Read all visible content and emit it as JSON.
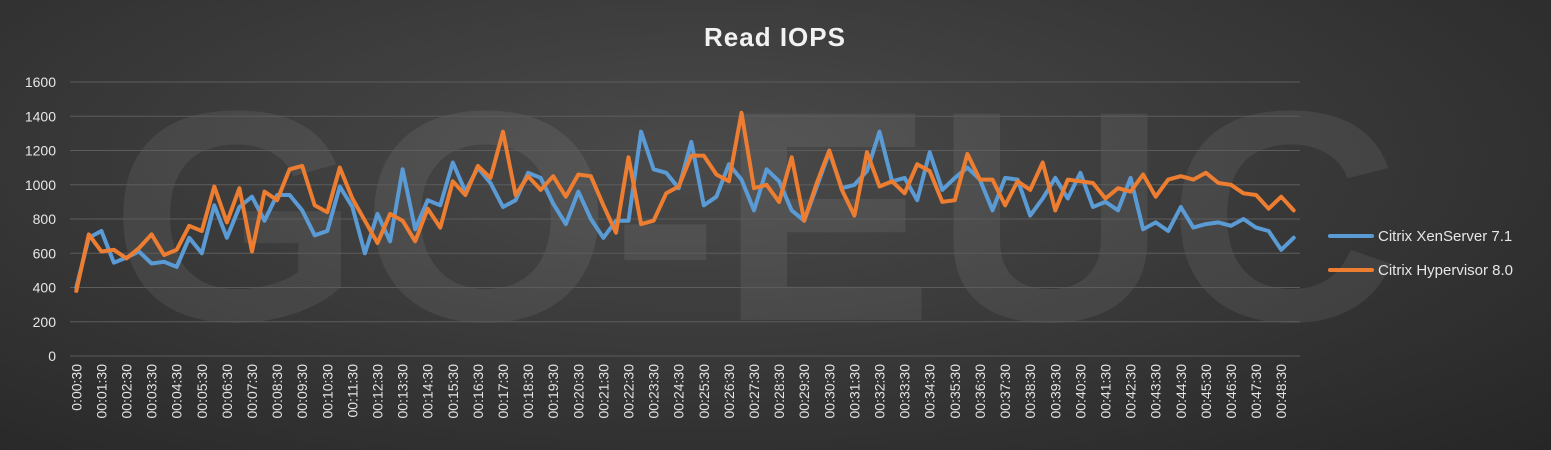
{
  "chart_data": {
    "type": "line",
    "title": "Read IOPS",
    "xlabel": "",
    "ylabel": "",
    "ylim": [
      0,
      1600
    ],
    "yticks": [
      0,
      200,
      400,
      600,
      800,
      1000,
      1200,
      1400,
      1600
    ],
    "grid": true,
    "legend_position": "right",
    "watermark": "GO-EUC",
    "x_tick_labels": [
      "0:00:30",
      "00:01:30",
      "00:02:30",
      "00:03:30",
      "00:04:30",
      "00:05:30",
      "00:06:30",
      "00:07:30",
      "00:08:30",
      "00:09:30",
      "00:10:30",
      "00:11:30",
      "00:12:30",
      "00:13:30",
      "00:14:30",
      "00:15:30",
      "00:16:30",
      "00:17:30",
      "00:18:30",
      "00:19:30",
      "00:20:30",
      "00:21:30",
      "00:22:30",
      "00:23:30",
      "00:24:30",
      "00:25:30",
      "00:26:30",
      "00:27:30",
      "00:28:30",
      "00:29:30",
      "00:30:30",
      "00:31:30",
      "00:32:30",
      "00:33:30",
      "00:34:30",
      "00:35:30",
      "00:36:30",
      "00:37:30",
      "00:38:30",
      "00:39:30",
      "00:40:30",
      "00:41:30",
      "00:42:30",
      "00:43:30",
      "00:44:30",
      "00:45:30",
      "00:46:30",
      "00:47:30",
      "00:48:30"
    ],
    "series": [
      {
        "name": "Citrix XenServer 7.1",
        "color": "#5b9bd5",
        "values": [
          400,
          690,
          730,
          545,
          575,
          610,
          540,
          550,
          520,
          690,
          600,
          880,
          690,
          870,
          930,
          790,
          940,
          940,
          850,
          705,
          730,
          990,
          870,
          600,
          830,
          670,
          1090,
          740,
          910,
          880,
          1130,
          960,
          1100,
          1010,
          870,
          910,
          1070,
          1040,
          890,
          770,
          960,
          800,
          690,
          790,
          790,
          1310,
          1090,
          1070,
          980,
          1250,
          880,
          930,
          1120,
          1030,
          850,
          1090,
          1020,
          850,
          790,
          990,
          1190,
          980,
          1000,
          1080,
          1310,
          1020,
          1040,
          910,
          1190,
          970,
          1040,
          1100,
          1030,
          850,
          1040,
          1030,
          820,
          920,
          1040,
          920,
          1070,
          870,
          900,
          850,
          1040,
          740,
          780,
          730,
          870,
          750,
          770,
          780,
          760,
          800,
          750,
          730,
          620,
          690
        ]
      },
      {
        "name": "Citrix Hypervisor 8.0",
        "color": "#ed7d31",
        "values": [
          380,
          710,
          610,
          620,
          570,
          630,
          710,
          590,
          620,
          760,
          730,
          990,
          780,
          980,
          610,
          960,
          910,
          1090,
          1110,
          880,
          840,
          1100,
          920,
          790,
          660,
          830,
          790,
          670,
          860,
          750,
          1020,
          940,
          1110,
          1040,
          1310,
          940,
          1050,
          970,
          1050,
          930,
          1060,
          1050,
          880,
          720,
          1160,
          770,
          790,
          950,
          990,
          1170,
          1170,
          1060,
          1020,
          1420,
          980,
          1000,
          900,
          1160,
          790,
          1010,
          1200,
          970,
          820,
          1190,
          990,
          1020,
          950,
          1120,
          1080,
          900,
          910,
          1180,
          1030,
          1030,
          880,
          1020,
          970,
          1130,
          850,
          1030,
          1020,
          1010,
          920,
          980,
          960,
          1060,
          930,
          1030,
          1050,
          1030,
          1070,
          1010,
          1000,
          950,
          940,
          860,
          930,
          850
        ]
      }
    ]
  }
}
